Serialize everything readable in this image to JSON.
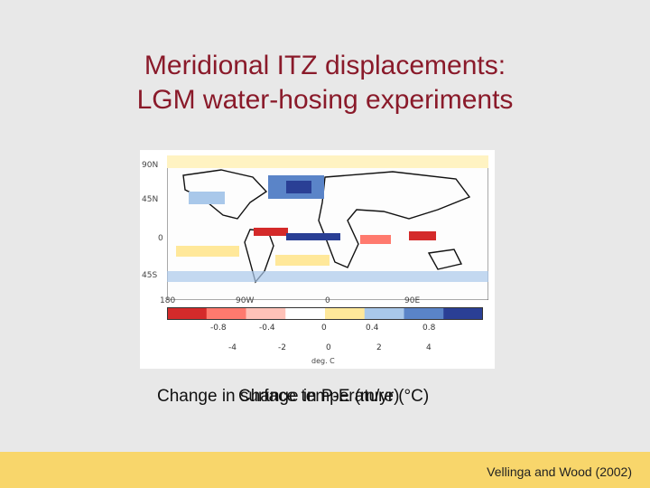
{
  "slide": {
    "title_line1": "Meridional ITZ displacements:",
    "title_line2": "LGM water-hosing experiments"
  },
  "figure": {
    "lat_labels": [
      "90N",
      "45N",
      "0",
      "45S"
    ],
    "lon_labels": [
      "180",
      "90W",
      "0",
      "90E"
    ],
    "colorbar_ticks_top": [
      "-0.8",
      "-0.4",
      "0",
      "0.4",
      "0.8"
    ],
    "colorbar_ticks_bottom": [
      "-4",
      "-2",
      "0",
      "2",
      "4"
    ],
    "colorbar_unit": "deg. C",
    "colors": [
      "#d42a2a",
      "#ff7a6e",
      "#ffc2b8",
      "#ffffff",
      "#ffe89a",
      "#a9c8ea",
      "#5a84c8",
      "#2a3f95"
    ]
  },
  "captions": {
    "overlay_a": "Change in surface temperature (°C)",
    "overlay_b": "Change in P-E (m/yr)"
  },
  "footer": {
    "credit": "Vellinga and Wood (2002)"
  }
}
